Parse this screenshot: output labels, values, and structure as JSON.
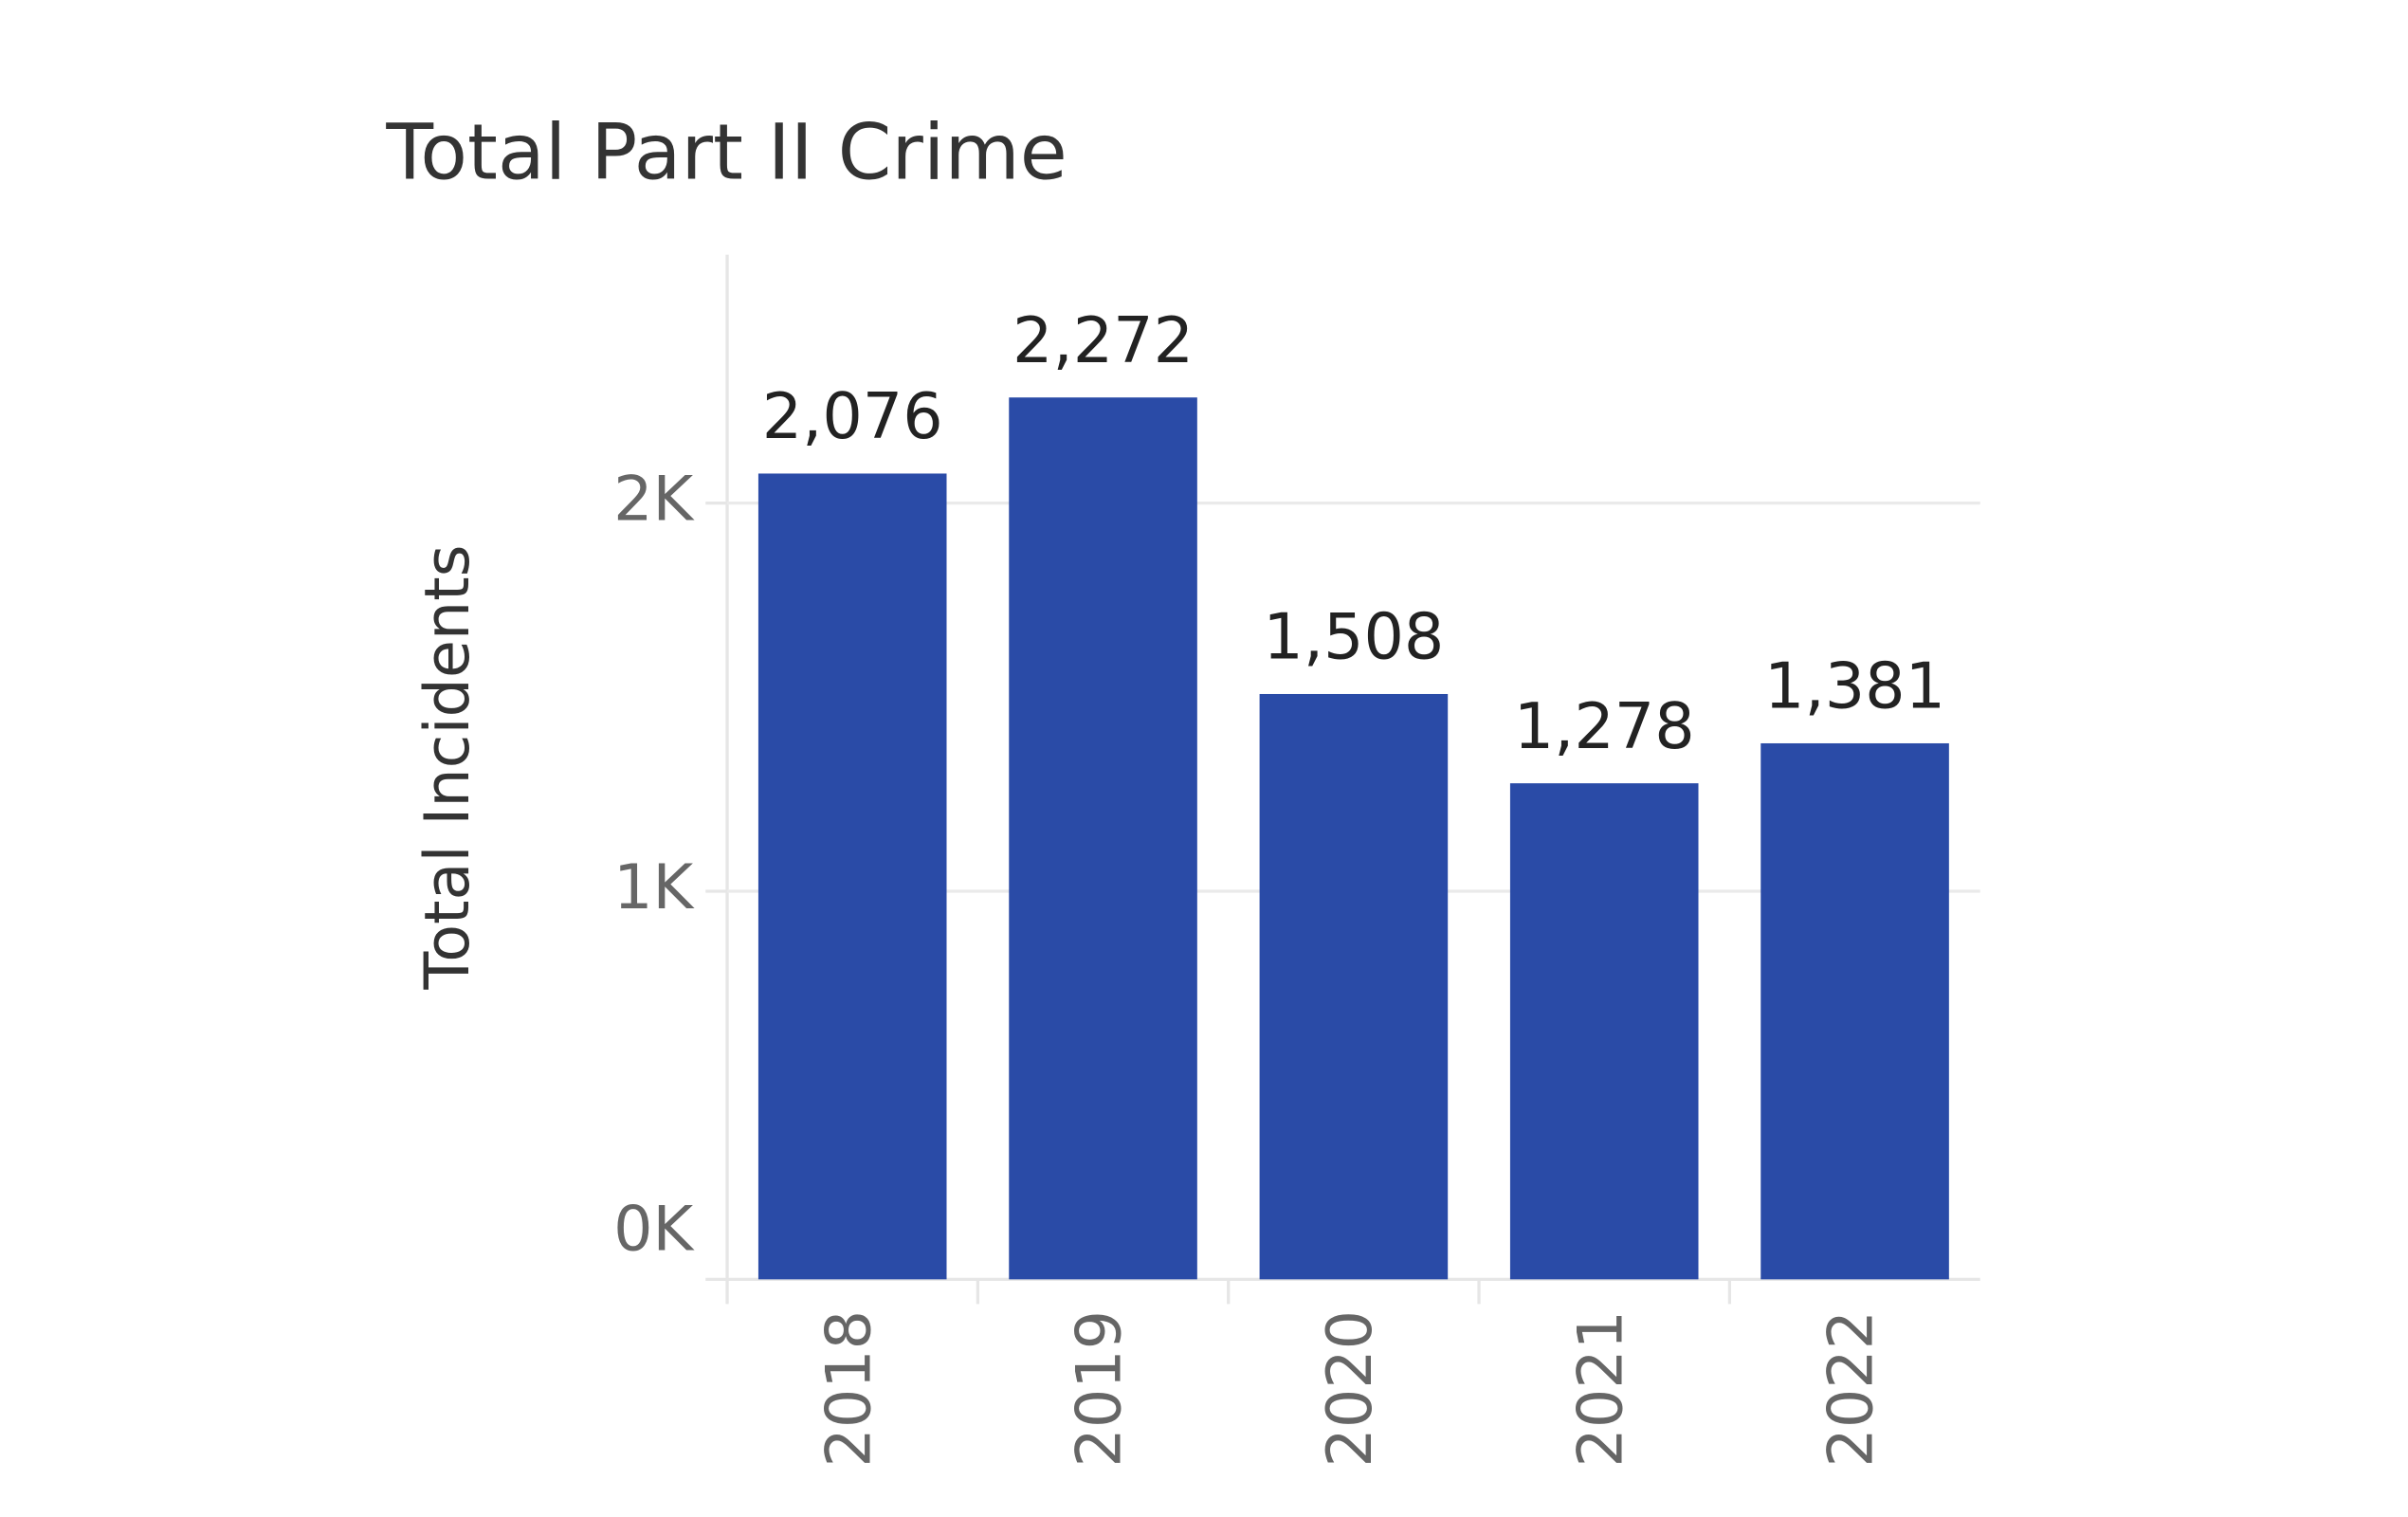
{
  "chart_data": {
    "type": "bar",
    "title": "Total Part II Crime",
    "y_label": "Total Incidents",
    "categories": [
      "2018",
      "2019",
      "2020",
      "2021",
      "2022"
    ],
    "values": [
      2076,
      2272,
      1508,
      1278,
      1381
    ],
    "value_labels": [
      "2,076",
      "2,272",
      "1,508",
      "1,278",
      "1,381"
    ],
    "color": "#2a4ba7",
    "ylim": [
      0,
      2640
    ],
    "yticks": [
      {
        "value": 0,
        "label": "0K"
      },
      {
        "value": 1000,
        "label": "1K"
      },
      {
        "value": 2000,
        "label": "2K"
      }
    ],
    "grid": true
  }
}
